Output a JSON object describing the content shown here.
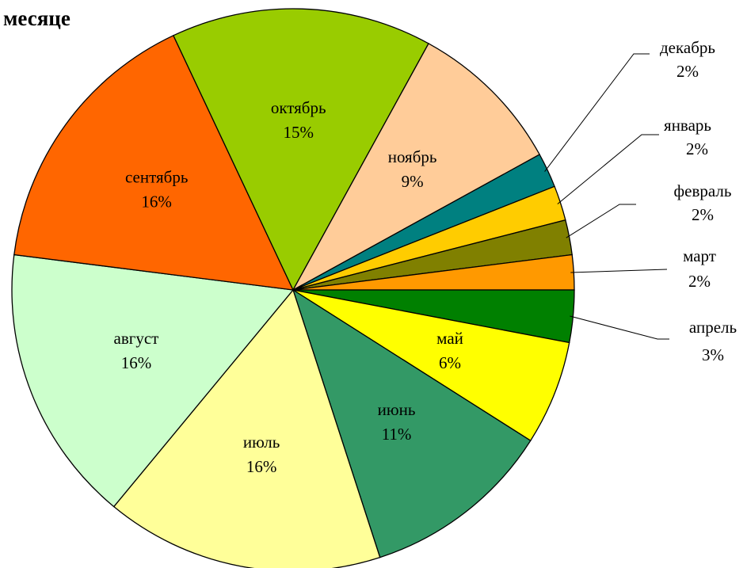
{
  "chart_data": {
    "type": "pie",
    "title": "месяце",
    "categories": [
      "декабрь",
      "январь",
      "февраль",
      "март",
      "апрель",
      "май",
      "июнь",
      "июль",
      "август",
      "сентябрь",
      "октябрь",
      "ноябрь"
    ],
    "values": [
      2,
      2,
      2,
      2,
      3,
      6,
      11,
      16,
      16,
      16,
      15,
      9
    ],
    "value_labels": [
      "2%",
      "2%",
      "2%",
      "2%",
      "3%",
      "6%",
      "11%",
      "16%",
      "16%",
      "16%",
      "15%",
      "9%"
    ],
    "colors": [
      "#008080",
      "#FFCC00",
      "#808000",
      "#FF9900",
      "#008000",
      "#FFFF00",
      "#339966",
      "#FFFF99",
      "#CCFFCC",
      "#FF6600",
      "#99CC00",
      "#FFCC99"
    ]
  }
}
